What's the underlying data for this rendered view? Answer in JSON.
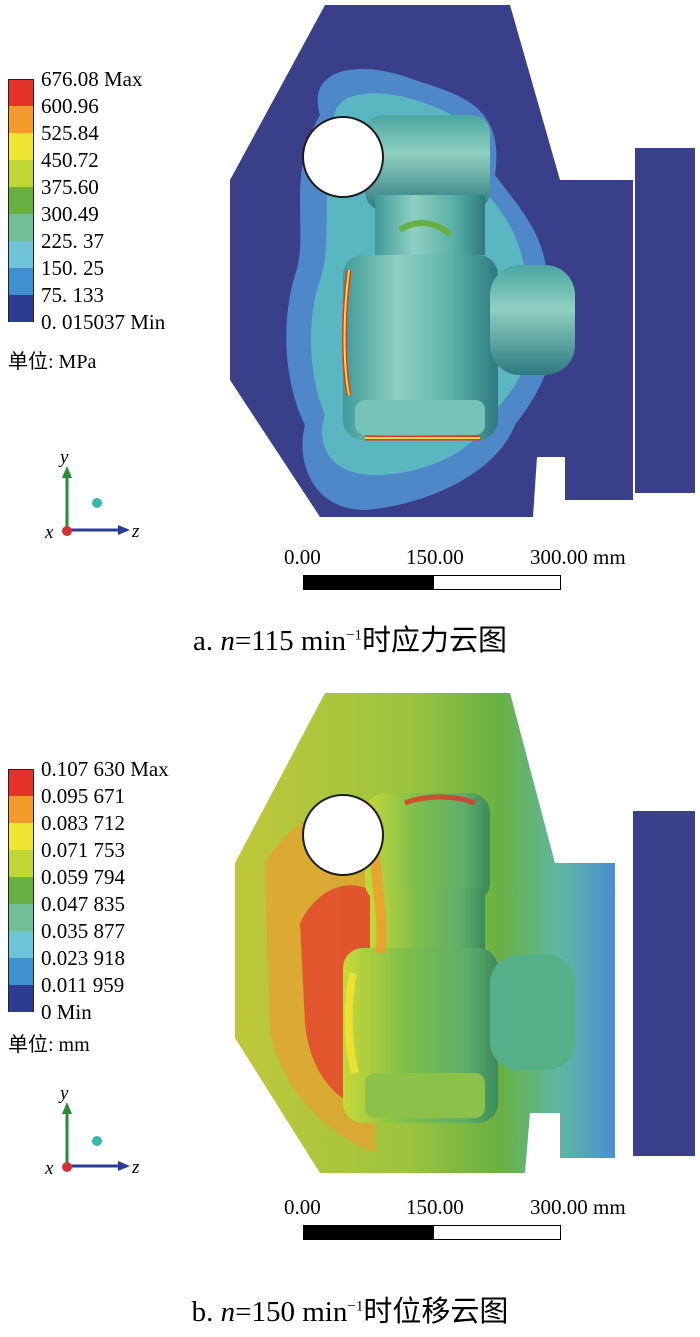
{
  "panel_a": {
    "legend": {
      "colors": [
        "#e4322a",
        "#f39a2c",
        "#f0e532",
        "#c0d637",
        "#69b042",
        "#72bf97",
        "#6fc4dc",
        "#3f8fd2",
        "#2c3c92"
      ],
      "labels": [
        "676.08 Max",
        "600.96",
        "525.84",
        "450.72",
        "375.60",
        "300.49",
        "225. 37",
        "150. 25",
        "75. 133",
        "0. 015037  Min"
      ]
    },
    "unit": "单位: MPa",
    "axes": {
      "y": "y",
      "x": "x",
      "z": "z"
    },
    "scale": {
      "left": "0.00",
      "mid": "150.00",
      "right": "300.00 mm"
    },
    "caption": {
      "prefix": "a. ",
      "n": "n",
      "value": "=115 min",
      "sup": "−1",
      "suffix": "时应力云图"
    }
  },
  "panel_b": {
    "legend": {
      "colors": [
        "#e4322a",
        "#f39a2c",
        "#f0e532",
        "#c0d637",
        "#69b042",
        "#72bf97",
        "#6fc4dc",
        "#3f8fd2",
        "#2c3c92"
      ],
      "labels": [
        "0.107 630 Max",
        "0.095 671",
        "0.083 712",
        "0.071 753",
        "0.059 794",
        "0.047 835",
        "0.035 877",
        "0.023 918",
        "0.011 959",
        "0 Min"
      ]
    },
    "unit": "单位: mm",
    "axes": {
      "y": "y",
      "x": "x",
      "z": "z"
    },
    "scale": {
      "left": "0.00",
      "mid": "150.00",
      "right": "300.00 mm"
    },
    "caption": {
      "prefix": "b. ",
      "n": "n",
      "value": "=150 min",
      "sup": "−1",
      "suffix": "时位移云图"
    }
  }
}
